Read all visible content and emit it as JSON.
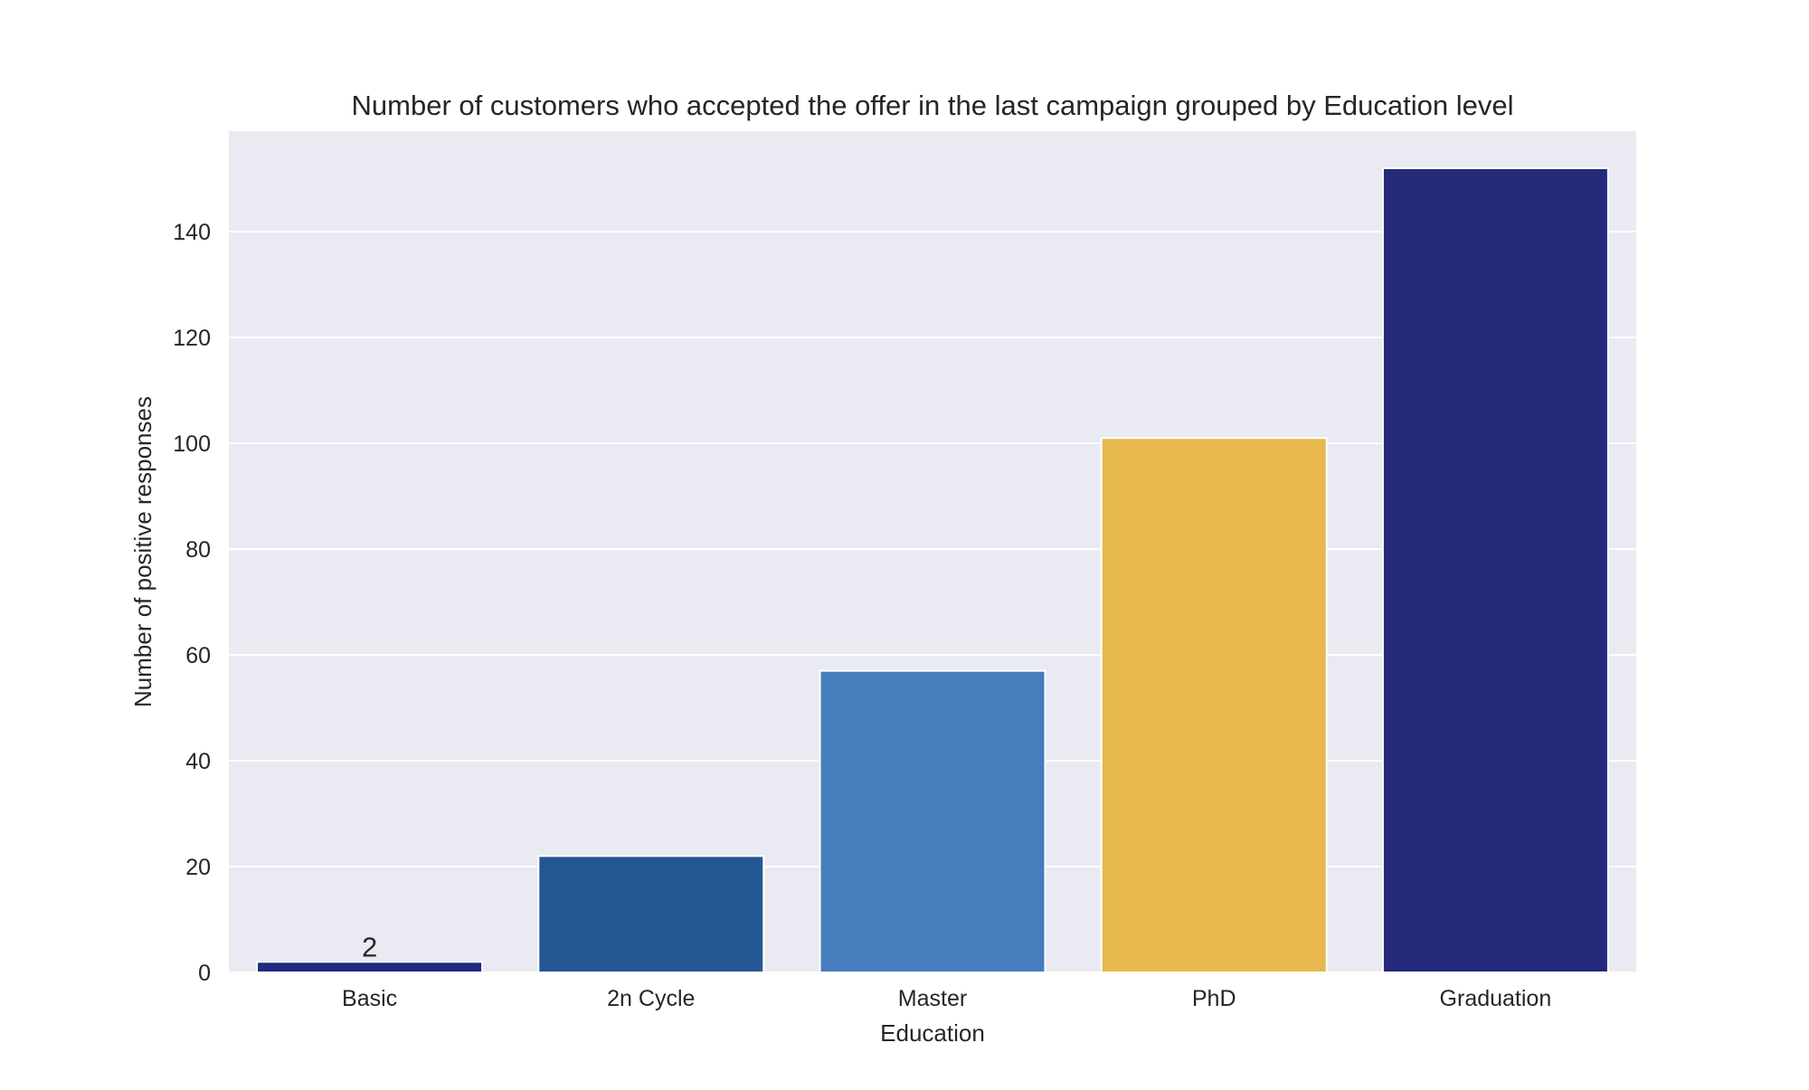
{
  "chart_data": {
    "type": "bar",
    "title": "Number of customers who accepted the offer in the last campaign grouped by Education level",
    "xlabel": "Education",
    "ylabel": "Number of positive responses",
    "categories": [
      "Basic",
      "2n Cycle",
      "Master",
      "PhD",
      "Graduation"
    ],
    "values": [
      2,
      22,
      57,
      101,
      152
    ],
    "colors": [
      "#1f2a80",
      "#255694",
      "#467dbd",
      "#e6b84e",
      "#262a7b"
    ],
    "data_labels": [
      {
        "category": "Basic",
        "text": "2"
      }
    ],
    "ylim": [
      0,
      159
    ],
    "yticks": [
      0,
      20,
      40,
      60,
      80,
      100,
      120,
      140
    ],
    "grid": true,
    "background": "#eaeaf2",
    "legend": "none"
  }
}
